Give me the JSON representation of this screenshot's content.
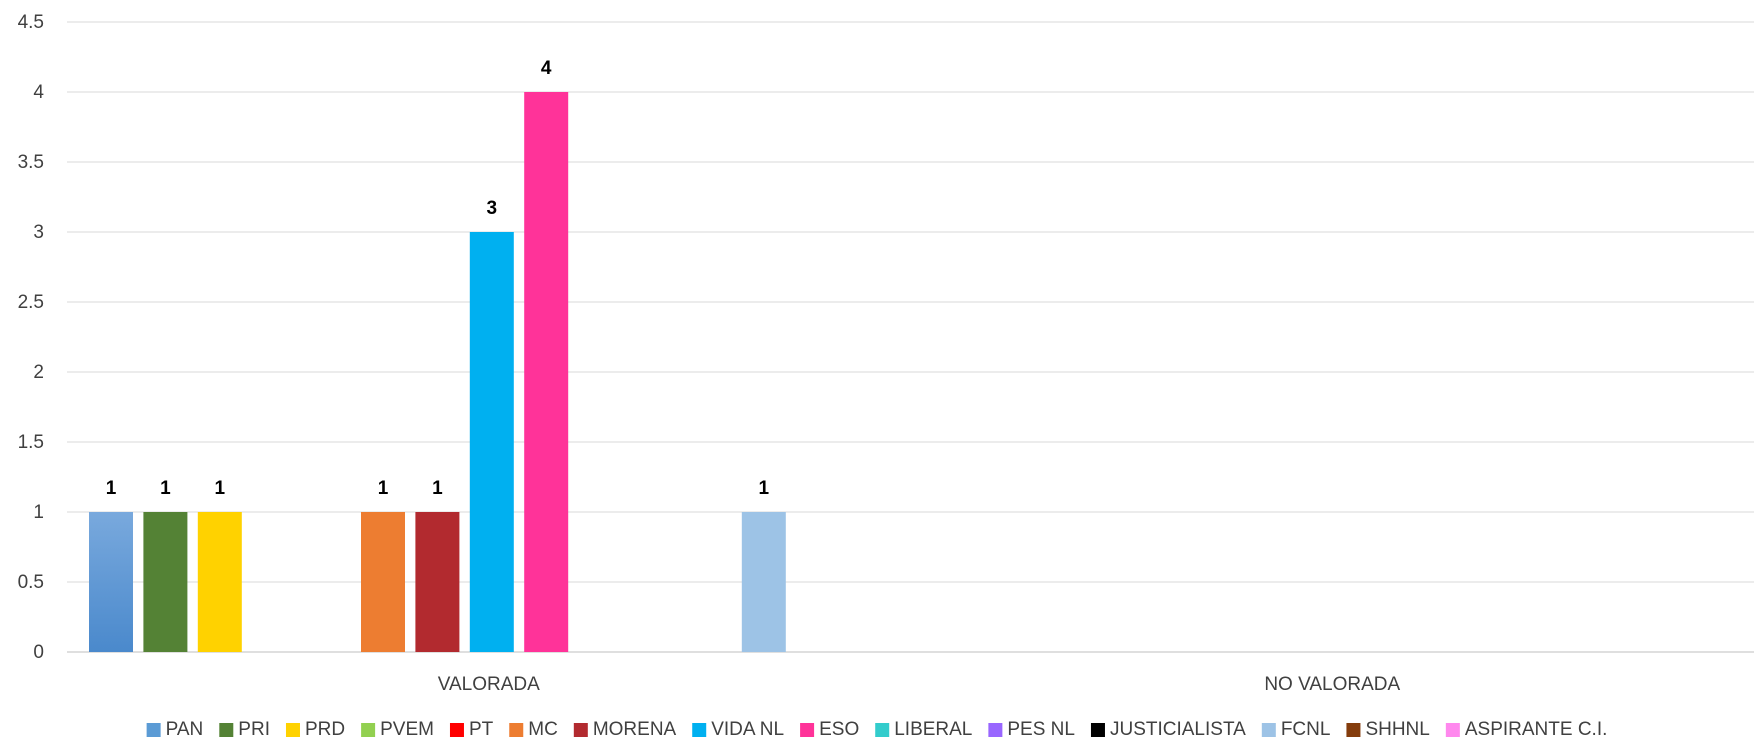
{
  "chart_data": {
    "type": "bar",
    "title": "",
    "xlabel": "",
    "ylabel": "",
    "ylim": [
      0,
      4.5
    ],
    "y_ticks": [
      "0",
      "0.5",
      "1",
      "1.5",
      "2",
      "2.5",
      "3",
      "3.5",
      "4",
      "4.5"
    ],
    "grid": true,
    "legend_position": "bottom",
    "categories": [
      "VALORADA",
      "NO VALORADA"
    ],
    "series": [
      {
        "name": "PAN",
        "color": "#5B9BD5",
        "values": [
          1,
          0
        ]
      },
      {
        "name": "PRI",
        "color": "#548235",
        "values": [
          1,
          0
        ]
      },
      {
        "name": "PRD",
        "color": "#FFD200",
        "values": [
          1,
          0
        ]
      },
      {
        "name": "PVEM",
        "color": "#92D050",
        "values": [
          0,
          0
        ]
      },
      {
        "name": "PT",
        "color": "#FF0000",
        "values": [
          0,
          0
        ]
      },
      {
        "name": "MC",
        "color": "#ED7D31",
        "values": [
          1,
          0
        ]
      },
      {
        "name": "MORENA",
        "color": "#B22A2F",
        "values": [
          1,
          0
        ]
      },
      {
        "name": "VIDA NL",
        "color": "#00B0F0",
        "values": [
          3,
          0
        ]
      },
      {
        "name": "ESO",
        "color": "#FF3399",
        "values": [
          4,
          0
        ]
      },
      {
        "name": "LIBERAL",
        "color": "#33CCCC",
        "values": [
          0,
          0
        ]
      },
      {
        "name": "PES NL",
        "color": "#9966FF",
        "values": [
          0,
          0
        ]
      },
      {
        "name": "JUSTICIALISTA",
        "color": "#000000",
        "values": [
          0,
          0
        ]
      },
      {
        "name": "FCNL",
        "color": "#9DC3E6",
        "values": [
          1,
          0
        ]
      },
      {
        "name": "SHHNL",
        "color": "#843C0C",
        "values": [
          0,
          0
        ]
      },
      {
        "name": "ASPIRANTE C.I.",
        "color": "#FF88EE",
        "values": [
          0,
          0
        ]
      }
    ]
  }
}
